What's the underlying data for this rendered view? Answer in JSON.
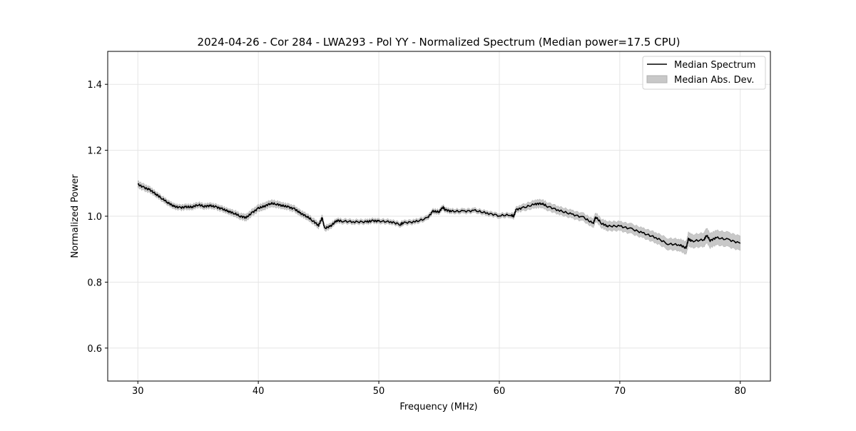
{
  "chart_data": {
    "type": "line",
    "title": "2024-04-26 - Cor 284 - LWA293 - Pol YY - Normalized Spectrum (Median power=17.5 CPU)",
    "xlabel": "Frequency (MHz)",
    "ylabel": "Normalized Power",
    "xlim": [
      27.5,
      82.5
    ],
    "ylim": [
      0.5,
      1.5
    ],
    "xticks": [
      30,
      40,
      50,
      60,
      70,
      80
    ],
    "yticks": [
      0.6,
      0.8,
      1.0,
      1.2,
      1.4
    ],
    "ytick_labels": [
      "0.6",
      "0.8",
      "1.0",
      "1.2",
      "1.4"
    ],
    "grid": true,
    "legend_position": "top-right",
    "colors": {
      "line": "#000000",
      "band": "#c8c8c8",
      "grid": "#e5e5e5"
    },
    "series": [
      {
        "name": "Median Spectrum",
        "x": [
          30,
          30.5,
          31,
          31.5,
          32,
          32.5,
          33,
          33.5,
          34,
          34.5,
          35,
          35.5,
          36,
          36.5,
          37,
          37.5,
          38,
          38.5,
          39,
          39.5,
          40,
          40.5,
          41,
          41.5,
          42,
          42.5,
          43,
          43.5,
          44,
          44.5,
          45,
          45.3,
          45.5,
          46,
          46.5,
          47,
          48,
          49,
          49.5,
          50,
          51,
          51.8,
          52,
          53,
          54,
          54.5,
          55,
          55.3,
          55.5,
          56,
          57,
          58,
          59,
          60,
          61,
          61.2,
          61.4,
          62,
          63,
          63.5,
          64,
          65,
          66,
          67,
          67.8,
          68,
          68.5,
          69,
          70,
          71,
          72,
          73,
          74,
          75,
          75.5,
          75.7,
          76,
          77,
          77.2,
          77.5,
          78,
          79,
          80
        ],
        "values": [
          1.097,
          1.087,
          1.08,
          1.067,
          1.054,
          1.041,
          1.03,
          1.026,
          1.028,
          1.028,
          1.035,
          1.03,
          1.032,
          1.028,
          1.022,
          1.015,
          1.009,
          1.0,
          0.996,
          1.011,
          1.024,
          1.03,
          1.039,
          1.037,
          1.032,
          1.028,
          1.022,
          1.009,
          1.0,
          0.987,
          0.972,
          0.995,
          0.963,
          0.97,
          0.987,
          0.985,
          0.983,
          0.983,
          0.986,
          0.985,
          0.983,
          0.975,
          0.98,
          0.983,
          0.994,
          1.015,
          1.013,
          1.028,
          1.02,
          1.015,
          1.015,
          1.017,
          1.009,
          1.002,
          1.004,
          1.0,
          1.02,
          1.026,
          1.037,
          1.039,
          1.03,
          1.017,
          1.006,
          0.996,
          0.978,
          0.998,
          0.978,
          0.97,
          0.97,
          0.961,
          0.948,
          0.935,
          0.916,
          0.913,
          0.903,
          0.931,
          0.924,
          0.929,
          0.943,
          0.926,
          0.935,
          0.929,
          0.918
        ]
      },
      {
        "name": "Median Abs. Dev.",
        "mad": [
          0.01,
          0.01,
          0.009,
          0.008,
          0.008,
          0.008,
          0.008,
          0.008,
          0.008,
          0.008,
          0.008,
          0.008,
          0.008,
          0.008,
          0.008,
          0.008,
          0.009,
          0.009,
          0.01,
          0.01,
          0.01,
          0.01,
          0.01,
          0.01,
          0.009,
          0.009,
          0.009,
          0.009,
          0.009,
          0.009,
          0.009,
          0.009,
          0.009,
          0.008,
          0.007,
          0.007,
          0.007,
          0.007,
          0.007,
          0.007,
          0.007,
          0.007,
          0.007,
          0.007,
          0.007,
          0.007,
          0.007,
          0.007,
          0.007,
          0.007,
          0.007,
          0.007,
          0.007,
          0.007,
          0.007,
          0.008,
          0.008,
          0.01,
          0.012,
          0.012,
          0.012,
          0.012,
          0.012,
          0.012,
          0.013,
          0.013,
          0.013,
          0.014,
          0.014,
          0.015,
          0.015,
          0.016,
          0.017,
          0.018,
          0.019,
          0.02,
          0.02,
          0.021,
          0.022,
          0.022,
          0.022,
          0.022,
          0.022
        ]
      }
    ]
  }
}
